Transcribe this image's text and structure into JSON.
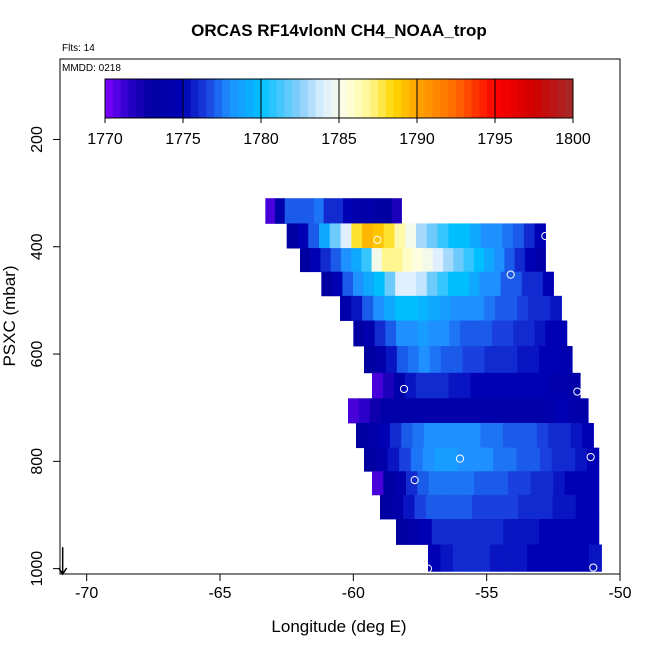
{
  "chart_data": {
    "type": "heatmap",
    "title": "ORCAS RF14vlonN CH4_NOAA_trop",
    "note_flts": "Flts: 14",
    "note_mmdd": "MMDD: 0218",
    "xlabel": "Longitude (deg E)",
    "ylabel": "PSXC (mbar)",
    "xlim": [
      -71,
      -50
    ],
    "ylim": [
      1010,
      50
    ],
    "x_ticks": [
      -70,
      -65,
      -60,
      -55,
      -50
    ],
    "y_ticks": [
      200,
      400,
      600,
      800,
      1000
    ],
    "colorbar": {
      "range": [
        1770,
        1800
      ],
      "ticks": [
        1770,
        1775,
        1780,
        1785,
        1790,
        1795,
        1800
      ],
      "stops": [
        {
          "value": 1770,
          "color": "#8000ff"
        },
        {
          "value": 1771.5,
          "color": "#2a00c8"
        },
        {
          "value": 1773,
          "color": "#0000a0"
        },
        {
          "value": 1775,
          "color": "#0000b4"
        },
        {
          "value": 1776.5,
          "color": "#1a40e0"
        },
        {
          "value": 1778,
          "color": "#1e90ff"
        },
        {
          "value": 1780,
          "color": "#00bfff"
        },
        {
          "value": 1782.5,
          "color": "#87cefa"
        },
        {
          "value": 1784,
          "color": "#dfefff"
        },
        {
          "value": 1785.5,
          "color": "#ffffe0"
        },
        {
          "value": 1787,
          "color": "#fff68f"
        },
        {
          "value": 1788.5,
          "color": "#ffd700"
        },
        {
          "value": 1790,
          "color": "#ffa500"
        },
        {
          "value": 1792.5,
          "color": "#ff6a00"
        },
        {
          "value": 1795,
          "color": "#ff0000"
        },
        {
          "value": 1797.5,
          "color": "#d00000"
        },
        {
          "value": 1800,
          "color": "#a52a2a"
        }
      ]
    },
    "cells": [
      {
        "p": 333,
        "x0": -63.3,
        "x1": -58.2,
        "values": [
          1771,
          1774,
          1777,
          1777,
          1777,
          1777.5,
          1776,
          1776,
          1775,
          1774,
          1774,
          1773.5,
          1773,
          1772
        ]
      },
      {
        "p": 380,
        "x0": -62.5,
        "x1": -52.8,
        "values": [
          1773,
          1775,
          1777,
          1779,
          1782,
          1784,
          1788,
          1789.5,
          1789,
          1788,
          1786.5,
          1785,
          1783,
          1782,
          1781,
          1780,
          1780,
          1779,
          1778,
          1778,
          1777.5,
          1777,
          1776,
          1775
        ]
      },
      {
        "p": 425,
        "x0": -62.0,
        "x1": -52.8,
        "values": [
          1773,
          1775,
          1776,
          1777,
          1778,
          1779,
          1781,
          1785,
          1787,
          1787,
          1786,
          1785.5,
          1785,
          1784,
          1783,
          1782,
          1781,
          1780,
          1779,
          1778,
          1777,
          1776,
          1775,
          1774
        ]
      },
      {
        "p": 468,
        "x0": -61.2,
        "x1": -52.5,
        "values": [
          1773,
          1775,
          1777,
          1778,
          1779,
          1780,
          1782,
          1784,
          1784,
          1783.5,
          1782,
          1781,
          1780,
          1780,
          1779,
          1778,
          1778,
          1777,
          1777,
          1776,
          1776,
          1775
        ]
      },
      {
        "p": 515,
        "x0": -60.5,
        "x1": -52.2,
        "values": [
          1774,
          1775.5,
          1777,
          1778,
          1779,
          1780,
          1780,
          1779.5,
          1779,
          1778.5,
          1778,
          1778,
          1778,
          1777.5,
          1777,
          1777,
          1776.5,
          1776,
          1776,
          1775.5
        ]
      },
      {
        "p": 560,
        "x0": -60.0,
        "x1": -52.0,
        "values": [
          1773,
          1774.5,
          1776,
          1777,
          1778,
          1778,
          1778.5,
          1778,
          1778,
          1777.5,
          1777,
          1777,
          1777,
          1776.5,
          1776.5,
          1776,
          1776,
          1775.5,
          1775,
          1775
        ]
      },
      {
        "p": 610,
        "x0": -59.6,
        "x1": -51.8,
        "values": [
          1773,
          1774,
          1775.5,
          1777,
          1777.5,
          1778,
          1777.5,
          1777,
          1777,
          1776.5,
          1776.5,
          1776,
          1776,
          1776,
          1775.5,
          1775.5,
          1775,
          1775,
          1774.5
        ]
      },
      {
        "p": 660,
        "x0": -59.3,
        "x1": -51.5,
        "values": [
          1771,
          1772,
          1774,
          1775.5,
          1776,
          1776,
          1776,
          1775.5,
          1775.5,
          1775,
          1775,
          1775,
          1775,
          1775,
          1775,
          1775,
          1774.5,
          1774.5,
          1774
        ]
      },
      {
        "p": 705,
        "x0": -60.2,
        "x1": -51.2,
        "values": [
          1771,
          1771.5,
          1772.5,
          1774,
          1774,
          1774,
          1774,
          1774,
          1774,
          1774,
          1774,
          1774,
          1774,
          1774,
          1774,
          1774,
          1774,
          1774,
          1774.5,
          1775,
          1774.5,
          1774
        ]
      },
      {
        "p": 752,
        "x0": -59.9,
        "x1": -51.0,
        "values": [
          1773,
          1774,
          1775,
          1776,
          1777,
          1777.5,
          1778,
          1778,
          1778,
          1778,
          1778,
          1777.5,
          1777.5,
          1777,
          1777,
          1777,
          1776.5,
          1776,
          1776,
          1775.5,
          1775
        ]
      },
      {
        "p": 797,
        "x0": -59.6,
        "x1": -50.8,
        "values": [
          1773,
          1774,
          1775.5,
          1776.5,
          1777.5,
          1778,
          1778.5,
          1778.5,
          1778,
          1778,
          1778,
          1777.5,
          1777.5,
          1777,
          1777,
          1776.5,
          1776,
          1776,
          1775.5,
          1775
        ]
      },
      {
        "p": 840,
        "x0": -59.3,
        "x1": -50.8,
        "values": [
          1771,
          1773,
          1774.5,
          1776,
          1777,
          1777.5,
          1777.5,
          1777.5,
          1777.5,
          1777,
          1777,
          1777,
          1776.5,
          1776.5,
          1776,
          1776,
          1775.5,
          1775,
          1775,
          1775
        ]
      },
      {
        "p": 885,
        "x0": -59.0,
        "x1": -50.8,
        "values": [
          1773,
          1774,
          1775.5,
          1776.5,
          1777,
          1777,
          1777,
          1777,
          1776.5,
          1776.5,
          1776.5,
          1776.5,
          1776,
          1776,
          1776,
          1775.5,
          1775.5,
          1775,
          1775
        ]
      },
      {
        "p": 930,
        "x0": -58.4,
        "x1": -50.8,
        "values": [
          1773,
          1774,
          1775,
          1776,
          1776,
          1776,
          1776,
          1776,
          1776,
          1775.5,
          1775.5,
          1775.5,
          1775,
          1775,
          1775,
          1775,
          1775
        ]
      },
      {
        "p": 980,
        "x0": -57.2,
        "x1": -50.7,
        "values": [
          1775,
          1775.5,
          1776,
          1776,
          1776,
          1775.5,
          1775.5,
          1775.5,
          1775,
          1775,
          1775,
          1775,
          1775,
          1775.5
        ]
      }
    ],
    "points": [
      {
        "lon": -59.1,
        "p": 387
      },
      {
        "lon": -52.8,
        "p": 380
      },
      {
        "lon": -54.1,
        "p": 452
      },
      {
        "lon": -58.1,
        "p": 665
      },
      {
        "lon": -51.6,
        "p": 670
      },
      {
        "lon": -56.0,
        "p": 795
      },
      {
        "lon": -57.7,
        "p": 835
      },
      {
        "lon": -51.1,
        "p": 792
      },
      {
        "lon": -57.2,
        "p": 1000
      },
      {
        "lon": -51.0,
        "p": 998
      }
    ],
    "marker_arrow": {
      "lon": -70.9,
      "p0": 960,
      "p1": 1010
    }
  }
}
